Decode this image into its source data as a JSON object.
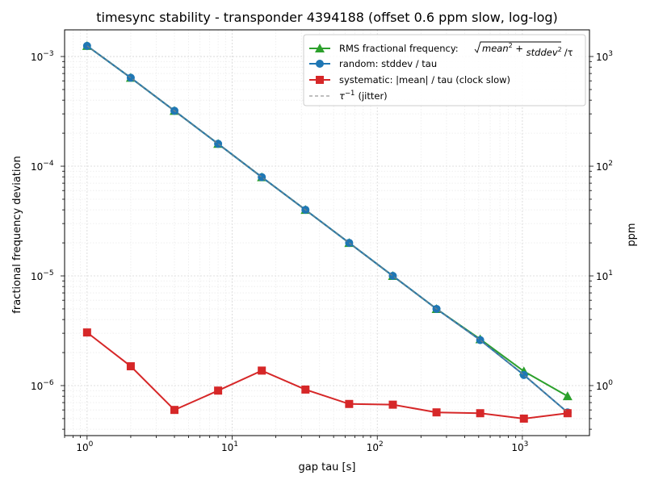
{
  "chart_data": {
    "type": "line",
    "title": "timesync stability - transponder 4394188 (offset 0.6 ppm slow, log-log)",
    "xlabel": "gap  tau  [s]",
    "ylabel": "fractional frequency deviation",
    "ylabel_right": "ppm",
    "xscale": "log",
    "yscale": "log",
    "xlim": [
      0.7,
      2900
    ],
    "ylim": [
      3.5e-07,
      0.00175
    ],
    "grid": true,
    "legend_position": "top-right",
    "x": [
      1,
      2,
      4,
      8,
      16,
      32,
      64,
      128,
      256,
      512,
      1024,
      2048
    ],
    "x_ticks": [
      {
        "value": 1,
        "base": "10",
        "exp": "0"
      },
      {
        "value": 10,
        "base": "10",
        "exp": "1"
      },
      {
        "value": 100,
        "base": "10",
        "exp": "2"
      },
      {
        "value": 1000,
        "base": "10",
        "exp": "3"
      }
    ],
    "y_ticks": [
      {
        "value": 0.001,
        "base": "10",
        "exp": "−3"
      },
      {
        "value": 0.0001,
        "base": "10",
        "exp": "−4"
      },
      {
        "value": 1e-05,
        "base": "10",
        "exp": "−5"
      },
      {
        "value": 1e-06,
        "base": "10",
        "exp": "−6"
      }
    ],
    "y_right_ticks": [
      {
        "value": 0.001,
        "label": "10",
        "exp": "3"
      },
      {
        "value": 0.0001,
        "label": "10",
        "exp": "2"
      },
      {
        "value": 1e-05,
        "label": "10",
        "exp": "1"
      },
      {
        "value": 1e-06,
        "label": "10",
        "exp": "0"
      }
    ],
    "series": [
      {
        "name": "RMS fractional frequency:",
        "formula": {
          "mean": "mean",
          "stddev": "stddev",
          "sq": "2",
          "tail": "/τ"
        },
        "color": "#2ca02c",
        "marker": "triangle",
        "values": [
          0.00125,
          0.00064,
          0.00032,
          0.00016,
          7.95e-05,
          4e-05,
          2e-05,
          1e-05,
          5e-06,
          2.65e-06,
          1.35e-06,
          8e-07
        ]
      },
      {
        "name": "random:  stddev / tau",
        "color": "#1f77b4",
        "marker": "circle",
        "values": [
          0.00125,
          0.00064,
          0.00032,
          0.00016,
          7.95e-05,
          4e-05,
          2e-05,
          1e-05,
          5e-06,
          2.6e-06,
          1.25e-06,
          5.7e-07
        ]
      },
      {
        "name": "systematic:  |mean| / tau  (clock slow)",
        "color": "#d62728",
        "marker": "square",
        "values": [
          3.05e-06,
          1.5e-06,
          6e-07,
          9e-07,
          1.37e-06,
          9.2e-07,
          6.8e-07,
          6.7e-07,
          5.7e-07,
          5.6e-07,
          5e-07,
          5.6e-07
        ]
      },
      {
        "name": "(jitter)",
        "name_prefix": "τ",
        "name_exp": "−1",
        "color": "#7f7f7f",
        "style": "dashed",
        "values": [
          0.00125,
          0.00064,
          0.00032,
          0.00016,
          7.95e-05,
          4e-05,
          2e-05,
          1e-05,
          5e-06,
          2.6e-06,
          1.25e-06,
          5.7e-07
        ]
      }
    ]
  }
}
